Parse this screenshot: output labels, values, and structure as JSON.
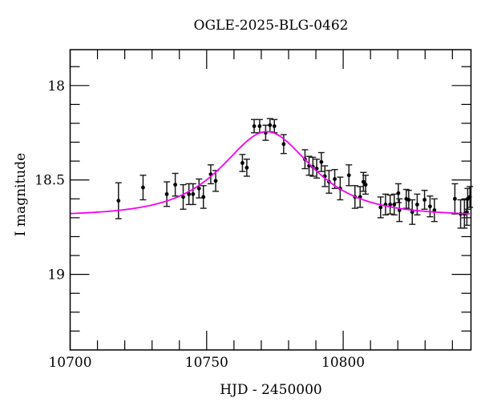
{
  "chart_data": {
    "type": "scatter",
    "title": "OGLE-2025-BLG-0462",
    "xlabel": "HJD - 2450000",
    "ylabel": "I magnitude",
    "xlim": [
      10700,
      10846.8
    ],
    "ylim_top": 17.81,
    "ylim_bottom": 19.4,
    "y_inverted": true,
    "grid": false,
    "legend": "none",
    "x_ticks": {
      "major": [
        10700,
        10750,
        10800
      ],
      "labels": [
        "10700",
        "10750",
        "10800"
      ],
      "minor_step": 10
    },
    "y_ticks": {
      "major": [
        18,
        18.5,
        19
      ],
      "labels": [
        "18",
        "18.5",
        "19"
      ],
      "minor_step": 0.1
    },
    "colors": {
      "data_point": "#000000",
      "error_bar": "#1a1a1a",
      "model_curve": "#f400f4",
      "frame": "#000000"
    },
    "points_format": [
      "t_hjd_minus_2450000",
      "I_mag",
      "I_mag_error"
    ],
    "points": [
      [
        10717.7,
        18.61,
        0.095
      ],
      [
        10726.7,
        18.54,
        0.065
      ],
      [
        10735.4,
        18.575,
        0.065
      ],
      [
        10738.5,
        18.525,
        0.06
      ],
      [
        10741.4,
        18.59,
        0.065
      ],
      [
        10743.5,
        18.575,
        0.055
      ],
      [
        10745.0,
        18.575,
        0.055
      ],
      [
        10747.2,
        18.545,
        0.05
      ],
      [
        10748.8,
        18.59,
        0.06
      ],
      [
        10751.5,
        18.47,
        0.05
      ],
      [
        10753.3,
        18.505,
        0.055
      ],
      [
        10763.1,
        18.41,
        0.045
      ],
      [
        10764.7,
        18.435,
        0.045
      ],
      [
        10767.4,
        18.215,
        0.035
      ],
      [
        10769.4,
        18.215,
        0.035
      ],
      [
        10771.6,
        18.25,
        0.04
      ],
      [
        10773.2,
        18.21,
        0.035
      ],
      [
        10774.8,
        18.215,
        0.035
      ],
      [
        10778.2,
        18.31,
        0.05
      ],
      [
        10786.0,
        18.39,
        0.05
      ],
      [
        10787.5,
        18.425,
        0.05
      ],
      [
        10788.9,
        18.43,
        0.05
      ],
      [
        10790.3,
        18.44,
        0.05
      ],
      [
        10792.0,
        18.405,
        0.05
      ],
      [
        10793.3,
        18.48,
        0.055
      ],
      [
        10794.8,
        18.51,
        0.06
      ],
      [
        10796.9,
        18.495,
        0.05
      ],
      [
        10798.9,
        18.545,
        0.06
      ],
      [
        10802.1,
        18.475,
        0.055
      ],
      [
        10804.3,
        18.59,
        0.06
      ],
      [
        10806.2,
        18.59,
        0.055
      ],
      [
        10807.4,
        18.51,
        0.05
      ],
      [
        10808.2,
        18.525,
        0.05
      ],
      [
        10813.7,
        18.645,
        0.055
      ],
      [
        10815.5,
        18.63,
        0.055
      ],
      [
        10817.2,
        18.63,
        0.05
      ],
      [
        10818.7,
        18.63,
        0.055
      ],
      [
        10820.2,
        18.57,
        0.05
      ],
      [
        10820.6,
        18.66,
        0.06
      ],
      [
        10823.1,
        18.6,
        0.05
      ],
      [
        10824.0,
        18.605,
        0.05
      ],
      [
        10825.3,
        18.67,
        0.065
      ],
      [
        10827.1,
        18.63,
        0.055
      ],
      [
        10829.8,
        18.605,
        0.05
      ],
      [
        10831.8,
        18.64,
        0.055
      ],
      [
        10833.4,
        18.66,
        0.06
      ],
      [
        10840.9,
        18.6,
        0.08
      ],
      [
        10843.0,
        18.68,
        0.075
      ],
      [
        10844.4,
        18.68,
        0.075
      ],
      [
        10845.3,
        18.67,
        0.07
      ],
      [
        10845.6,
        18.6,
        0.055
      ],
      [
        10846.4,
        18.59,
        0.055
      ]
    ],
    "model": {
      "type": "PSPL microlensing fit",
      "t0": 10772,
      "tE": 22,
      "u0": 0.82,
      "I_baseline": 18.69,
      "I_peak": 18.245
    }
  }
}
